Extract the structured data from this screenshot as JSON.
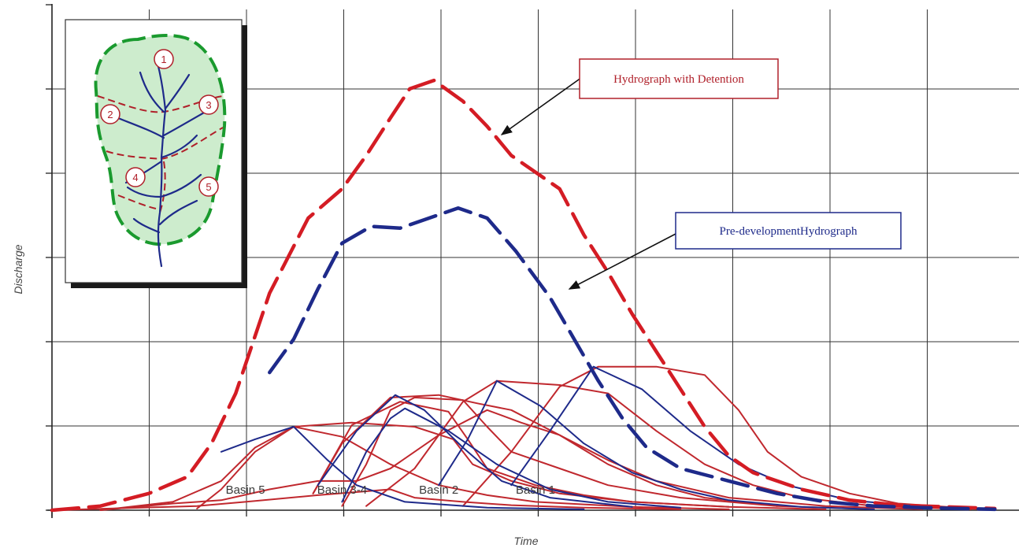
{
  "chart_data": {
    "type": "line",
    "title": "",
    "xlabel": "Time",
    "ylabel": "Discharge",
    "x_ticks_shown": false,
    "y_ticks_shown": false,
    "grid": true,
    "xlim": [
      0,
      20
    ],
    "ylim": [
      0,
      6
    ],
    "series": [
      {
        "name": "Hydrograph with Detention",
        "color": "#d41c24",
        "dash": "dashed",
        "points": [
          [
            0,
            0
          ],
          [
            1,
            0.05
          ],
          [
            2,
            0.2
          ],
          [
            2.8,
            0.4
          ],
          [
            3.3,
            0.8
          ],
          [
            3.8,
            1.4
          ],
          [
            4.5,
            2.6
          ],
          [
            5.3,
            3.5
          ],
          [
            6,
            3.85
          ],
          [
            6.5,
            4.25
          ],
          [
            7,
            4.7
          ],
          [
            7.4,
            5.05
          ],
          [
            7.9,
            5.15
          ],
          [
            8.5,
            4.9
          ],
          [
            9,
            4.6
          ],
          [
            9.5,
            4.25
          ],
          [
            10.5,
            3.85
          ],
          [
            11,
            3.3
          ],
          [
            11.5,
            2.85
          ],
          [
            12,
            2.35
          ],
          [
            12.5,
            1.9
          ],
          [
            13,
            1.45
          ],
          [
            13.5,
            1.0
          ],
          [
            14,
            0.65
          ],
          [
            14.5,
            0.45
          ],
          [
            15.5,
            0.25
          ],
          [
            16.5,
            0.12
          ],
          [
            17.5,
            0.06
          ],
          [
            19.5,
            0.02
          ]
        ]
      },
      {
        "name": "Pre-development Hydrograph",
        "color": "#1e2a8a",
        "dash": "dashed",
        "points": [
          [
            4.5,
            1.65
          ],
          [
            5,
            2.05
          ],
          [
            5.5,
            2.65
          ],
          [
            6,
            3.2
          ],
          [
            6.6,
            3.4
          ],
          [
            7.2,
            3.38
          ],
          [
            7.8,
            3.5
          ],
          [
            8.4,
            3.62
          ],
          [
            9,
            3.5
          ],
          [
            9.6,
            3.1
          ],
          [
            10.3,
            2.55
          ],
          [
            10.8,
            2.05
          ],
          [
            11.3,
            1.55
          ],
          [
            11.8,
            1.1
          ],
          [
            12.3,
            0.75
          ],
          [
            13,
            0.5
          ],
          [
            14,
            0.35
          ],
          [
            15,
            0.2
          ],
          [
            16,
            0.1
          ],
          [
            17,
            0.05
          ],
          [
            18,
            0.03
          ],
          [
            19.5,
            0.01
          ]
        ]
      },
      {
        "name": "",
        "color": "#c0282e",
        "dash": "solid",
        "points": [
          [
            0,
            0
          ],
          [
            3,
            0.05
          ],
          [
            4,
            0.1
          ],
          [
            5.5,
            0.18
          ],
          [
            7,
            0.25
          ],
          [
            7.5,
            0.15
          ],
          [
            8.5,
            0.1
          ],
          [
            9.5,
            0.06
          ],
          [
            11,
            0.03
          ],
          [
            13,
            0.01
          ]
        ]
      },
      {
        "name": "",
        "color": "#c0282e",
        "dash": "solid",
        "points": [
          [
            1,
            0
          ],
          [
            2.5,
            0.08
          ],
          [
            3.5,
            0.12
          ],
          [
            4.5,
            0.25
          ],
          [
            5.5,
            0.35
          ],
          [
            6.3,
            0.35
          ],
          [
            7,
            0.5
          ],
          [
            8,
            0.9
          ],
          [
            9,
            1.2
          ],
          [
            9.7,
            1.05
          ],
          [
            10.5,
            0.9
          ],
          [
            11.5,
            0.6
          ],
          [
            12.5,
            0.35
          ],
          [
            14,
            0.15
          ],
          [
            16,
            0.05
          ],
          [
            18,
            0.01
          ]
        ]
      },
      {
        "name": "",
        "color": "#c0282e",
        "dash": "solid",
        "points": [
          [
            1,
            0
          ],
          [
            2.5,
            0.1
          ],
          [
            3.5,
            0.35
          ],
          [
            4.2,
            0.75
          ],
          [
            5,
            1.0
          ],
          [
            6.2,
            1.05
          ],
          [
            7.5,
            1.0
          ],
          [
            8.3,
            0.85
          ],
          [
            8.7,
            0.55
          ],
          [
            9.5,
            0.35
          ],
          [
            10.5,
            0.2
          ],
          [
            12,
            0.1
          ],
          [
            14,
            0.04
          ],
          [
            16,
            0.01
          ]
        ]
      },
      {
        "name": "Basin 5",
        "color": "#c0282e",
        "dash": "solid",
        "points": [
          [
            3,
            0.02
          ],
          [
            3.5,
            0.25
          ],
          [
            4.2,
            0.7
          ],
          [
            5,
            1.0
          ],
          [
            6,
            0.88
          ],
          [
            7,
            0.55
          ],
          [
            8,
            0.3
          ],
          [
            9,
            0.18
          ],
          [
            10,
            0.1
          ],
          [
            12,
            0.04
          ],
          [
            14,
            0.01
          ]
        ]
      },
      {
        "name": "",
        "color": "#c0282e",
        "dash": "solid",
        "points": [
          [
            5.4,
            0.2
          ],
          [
            6.2,
            1.02
          ],
          [
            7.2,
            1.3
          ],
          [
            8.2,
            1.18
          ],
          [
            8.6,
            0.85
          ],
          [
            9,
            0.5
          ],
          [
            10,
            0.3
          ],
          [
            11,
            0.18
          ],
          [
            12,
            0.1
          ],
          [
            14,
            0.04
          ]
        ]
      },
      {
        "name": "",
        "color": "#c0282e",
        "dash": "solid",
        "points": [
          [
            6,
            0.05
          ],
          [
            6.5,
            0.55
          ],
          [
            7,
            1.2
          ],
          [
            7.5,
            1.35
          ],
          [
            8.5,
            1.32
          ],
          [
            9,
            1.0
          ],
          [
            9.5,
            0.7
          ],
          [
            10.5,
            0.5
          ],
          [
            11.5,
            0.3
          ],
          [
            13,
            0.15
          ],
          [
            15,
            0.05
          ]
        ]
      },
      {
        "name": "Basin 3-4",
        "color": "#c0282e",
        "dash": "solid",
        "points": [
          [
            5.4,
            0.2
          ],
          [
            6,
            0.8
          ],
          [
            7,
            1.35
          ],
          [
            8,
            1.38
          ],
          [
            8.8,
            1.28
          ],
          [
            9.5,
            1.2
          ],
          [
            10.5,
            0.9
          ],
          [
            11.5,
            0.55
          ],
          [
            12.5,
            0.3
          ],
          [
            13.5,
            0.15
          ],
          [
            15,
            0.05
          ],
          [
            17,
            0.01
          ]
        ]
      },
      {
        "name": "Basin 2",
        "color": "#c0282e",
        "dash": "solid",
        "points": [
          [
            6.5,
            0.05
          ],
          [
            7.5,
            0.5
          ],
          [
            8.5,
            1.3
          ],
          [
            9.2,
            1.55
          ],
          [
            10.5,
            1.5
          ],
          [
            11.5,
            1.4
          ],
          [
            12.5,
            0.95
          ],
          [
            13.5,
            0.55
          ],
          [
            14.5,
            0.3
          ],
          [
            15.5,
            0.15
          ],
          [
            17,
            0.05
          ],
          [
            19,
            0.01
          ]
        ]
      },
      {
        "name": "Basin 1",
        "color": "#c0282e",
        "dash": "solid",
        "points": [
          [
            8.5,
            0.05
          ],
          [
            9.5,
            0.7
          ],
          [
            10.5,
            1.48
          ],
          [
            11.3,
            1.72
          ],
          [
            12.5,
            1.72
          ],
          [
            13.5,
            1.62
          ],
          [
            14.2,
            1.2
          ],
          [
            14.8,
            0.7
          ],
          [
            15.5,
            0.4
          ],
          [
            16.5,
            0.2
          ],
          [
            17.5,
            0.08
          ],
          [
            19,
            0.02
          ]
        ]
      },
      {
        "name": "",
        "color": "#1e2a8a",
        "dash": "solid",
        "points": [
          [
            3.5,
            0.7
          ],
          [
            4.2,
            0.85
          ],
          [
            5,
            1.0
          ],
          [
            5.7,
            0.6
          ],
          [
            6.3,
            0.3
          ],
          [
            7.3,
            0.1
          ],
          [
            9,
            0.03
          ],
          [
            11,
            0.01
          ]
        ]
      },
      {
        "name": "",
        "color": "#1e2a8a",
        "dash": "solid",
        "points": [
          [
            5.5,
            0.3
          ],
          [
            6.3,
            0.95
          ],
          [
            7.1,
            1.38
          ],
          [
            7.7,
            1.2
          ],
          [
            8.5,
            0.75
          ],
          [
            9.3,
            0.35
          ],
          [
            10.3,
            0.15
          ],
          [
            12,
            0.04
          ]
        ]
      },
      {
        "name": "",
        "color": "#1e2a8a",
        "dash": "solid",
        "points": [
          [
            6,
            0.1
          ],
          [
            6.5,
            0.7
          ],
          [
            7,
            1.1
          ],
          [
            7.3,
            1.22
          ],
          [
            8.2,
            0.95
          ],
          [
            9.2,
            0.55
          ],
          [
            10.3,
            0.25
          ],
          [
            11.5,
            0.1
          ],
          [
            13,
            0.03
          ]
        ]
      },
      {
        "name": "",
        "color": "#1e2a8a",
        "dash": "solid",
        "points": [
          [
            8,
            0.3
          ],
          [
            8.6,
            0.85
          ],
          [
            9.2,
            1.55
          ],
          [
            10.1,
            1.25
          ],
          [
            11,
            0.8
          ],
          [
            12,
            0.45
          ],
          [
            13,
            0.25
          ],
          [
            14,
            0.12
          ],
          [
            15.5,
            0.04
          ],
          [
            17,
            0.01
          ]
        ]
      },
      {
        "name": "",
        "color": "#1e2a8a",
        "dash": "solid",
        "points": [
          [
            9.5,
            0.3
          ],
          [
            10.3,
            0.95
          ],
          [
            11.2,
            1.72
          ],
          [
            12.2,
            1.45
          ],
          [
            13.2,
            0.95
          ],
          [
            14.2,
            0.55
          ],
          [
            15.2,
            0.3
          ],
          [
            16.5,
            0.12
          ],
          [
            18,
            0.04
          ],
          [
            19.5,
            0.01
          ]
        ]
      }
    ],
    "callouts": [
      {
        "text": "Hydrograph with Detention",
        "target": [
          9.3,
          4.5
        ],
        "color": "#b0202a"
      },
      {
        "text": "Pre-developmentHydrograph",
        "target": [
          10.7,
          2.65
        ],
        "color": "#1e2a8a"
      }
    ],
    "basin_labels": [
      {
        "text": "Basin 5",
        "at": [
          4.0,
          0.2
        ]
      },
      {
        "text": "Basin 3-4",
        "at": [
          6.0,
          0.2
        ]
      },
      {
        "text": "Basin 2",
        "at": [
          8.0,
          0.2
        ]
      },
      {
        "text": "Basin 1",
        "at": [
          10.0,
          0.2
        ]
      }
    ]
  },
  "inset": {
    "subbasins": [
      "1",
      "2",
      "3",
      "4",
      "5"
    ],
    "boundary_color": "#1a9a2e",
    "fill_color": "#cdeccd",
    "stream_color": "#1e2a8a",
    "divide_color": "#b0202a"
  }
}
